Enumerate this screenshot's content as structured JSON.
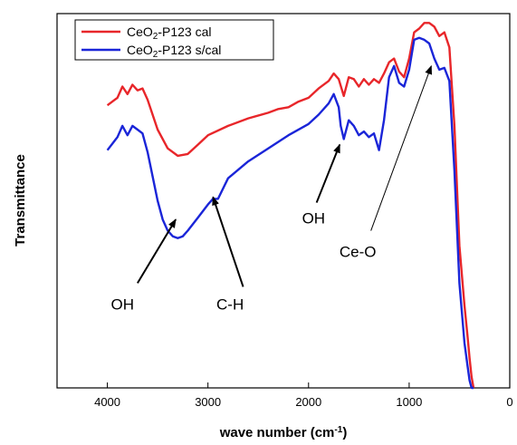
{
  "chart_data": {
    "type": "line",
    "xlabel": "wave number (cm",
    "xlabel_sup": "-1",
    "xlabel_end": ")",
    "ylabel": "Transmittance",
    "xlim": [
      4500,
      0
    ],
    "xticks": [
      "4000",
      "3000",
      "2000",
      "1000",
      "0"
    ],
    "xtick_values": [
      4000,
      3000,
      2000,
      1000,
      0
    ],
    "ylim": [
      0,
      100
    ],
    "yticks_visible": false,
    "grid": false,
    "legend": "top-left",
    "series": [
      {
        "name": "CeO2-P123 cal",
        "name_prefix": "CeO",
        "name_sub": "2",
        "name_suffix": "-P123 cal",
        "color": "#e8262a",
        "x": [
          4000,
          3900,
          3850,
          3800,
          3750,
          3700,
          3650,
          3600,
          3500,
          3400,
          3300,
          3200,
          3100,
          3000,
          2800,
          2600,
          2400,
          2300,
          2200,
          2100,
          2000,
          1900,
          1800,
          1750,
          1700,
          1650,
          1600,
          1550,
          1500,
          1450,
          1400,
          1350,
          1300,
          1250,
          1200,
          1150,
          1100,
          1050,
          1000,
          950,
          900,
          850,
          800,
          750,
          700,
          650,
          600,
          550,
          500,
          450,
          420,
          400,
          380,
          360
        ],
        "y": [
          75.5,
          77.5,
          80.5,
          78.5,
          81.0,
          79.5,
          80.0,
          77.0,
          69.0,
          64.0,
          62.0,
          62.5,
          65.0,
          67.5,
          70.0,
          72.0,
          73.5,
          74.5,
          75.0,
          76.5,
          77.5,
          80.0,
          82.0,
          84.0,
          82.5,
          78.0,
          83.0,
          82.5,
          80.5,
          82.5,
          81.0,
          82.5,
          81.5,
          84.0,
          87.0,
          88.0,
          84.5,
          83.0,
          88.0,
          95.0,
          96.0,
          97.5,
          97.5,
          96.5,
          94.0,
          95.0,
          91.0,
          70.0,
          38.0,
          22.0,
          14.0,
          8.0,
          3.0,
          0.0
        ]
      },
      {
        "name": "CeO2-P123 s/cal",
        "name_prefix": "CeO",
        "name_sub": "2",
        "name_suffix": "-P123 s/cal",
        "color": "#1a25d8",
        "x": [
          4000,
          3900,
          3850,
          3800,
          3750,
          3700,
          3650,
          3600,
          3500,
          3450,
          3400,
          3350,
          3300,
          3250,
          3200,
          3100,
          3000,
          2950,
          2900,
          2800,
          2600,
          2400,
          2200,
          2000,
          1900,
          1800,
          1750,
          1700,
          1680,
          1650,
          1600,
          1550,
          1500,
          1450,
          1400,
          1350,
          1300,
          1250,
          1200,
          1150,
          1100,
          1050,
          1000,
          950,
          900,
          850,
          800,
          750,
          700,
          650,
          600,
          550,
          500,
          450,
          420,
          400,
          380,
          360
        ],
        "y": [
          63.5,
          67.0,
          70.0,
          67.5,
          70.0,
          69.0,
          68.0,
          63.0,
          50.0,
          45.0,
          42.0,
          40.5,
          40.0,
          40.5,
          42.0,
          45.5,
          49.0,
          50.5,
          50.5,
          56.0,
          60.5,
          64.0,
          67.5,
          70.5,
          73.0,
          76.0,
          78.5,
          75.0,
          70.0,
          66.5,
          71.5,
          70.0,
          67.5,
          68.5,
          67.0,
          68.0,
          63.5,
          71.5,
          83.0,
          86.0,
          81.5,
          80.5,
          85.0,
          93.0,
          93.5,
          93.0,
          92.0,
          88.0,
          85.0,
          85.5,
          82.0,
          58.0,
          28.0,
          12.0,
          6.0,
          2.0,
          0.0,
          0.0
        ]
      }
    ],
    "annotations": [
      {
        "text": "OH",
        "label_x": 3850,
        "label_y": 21,
        "arrow_from": [
          3700,
          28
        ],
        "arrow_to": [
          3320,
          45
        ]
      },
      {
        "text": "C-H",
        "label_x": 2780,
        "label_y": 21,
        "arrow_from": [
          2650,
          27
        ],
        "arrow_to": [
          2950,
          51
        ]
      },
      {
        "text": "OH",
        "label_x": 1950,
        "label_y": 44,
        "arrow_from": [
          1920,
          49.5
        ],
        "arrow_to": [
          1690,
          65
        ]
      },
      {
        "text": "Ce-O",
        "label_x": 1510,
        "label_y": 35,
        "arrow_from": [
          1380,
          42
        ],
        "arrow_to": [
          780,
          86
        ]
      }
    ]
  }
}
